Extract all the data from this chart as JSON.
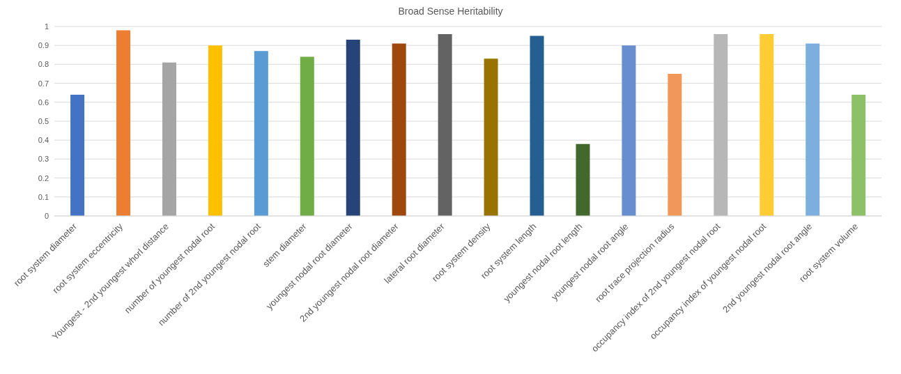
{
  "chart_data": {
    "type": "bar",
    "title": "Broad Sense Heritability",
    "categories": [
      "root system diameter",
      "root system eccentricity",
      "Youngest - 2nd youngest whorl distance",
      "number of youngest nodal root",
      "number of 2nd youngest nodal root",
      "stem diameter",
      "youngest nodal root diameter",
      "2nd youngest nodal root diameter",
      "lateral root diameter",
      "root system density",
      "root system length",
      "youngest nodal root length",
      "youngest nodal root angle",
      "root trace projection radius",
      "occupancy index of 2nd youngest nodal root",
      "occupancy index of youngest nodal root",
      "2nd youngest nodal root angle",
      "root system volume"
    ],
    "values": [
      0.64,
      0.98,
      0.81,
      0.9,
      0.87,
      0.84,
      0.93,
      0.91,
      0.96,
      0.83,
      0.95,
      0.38,
      0.9,
      0.75,
      0.96,
      0.96,
      0.91,
      0.64
    ],
    "colors": [
      "#4472c4",
      "#ed7d31",
      "#a5a5a5",
      "#ffc000",
      "#5b9bd5",
      "#70ad47",
      "#264478",
      "#9e480e",
      "#636363",
      "#997300",
      "#255e91",
      "#43682b",
      "#698ed0",
      "#f1975a",
      "#b7b7b7",
      "#ffcd33",
      "#7cafdd",
      "#8cc168"
    ],
    "ylim": [
      0,
      1
    ],
    "yticks": [
      0,
      0.1,
      0.2,
      0.3,
      0.4,
      0.5,
      0.6,
      0.7,
      0.8,
      0.9,
      1
    ],
    "grid": "y"
  }
}
